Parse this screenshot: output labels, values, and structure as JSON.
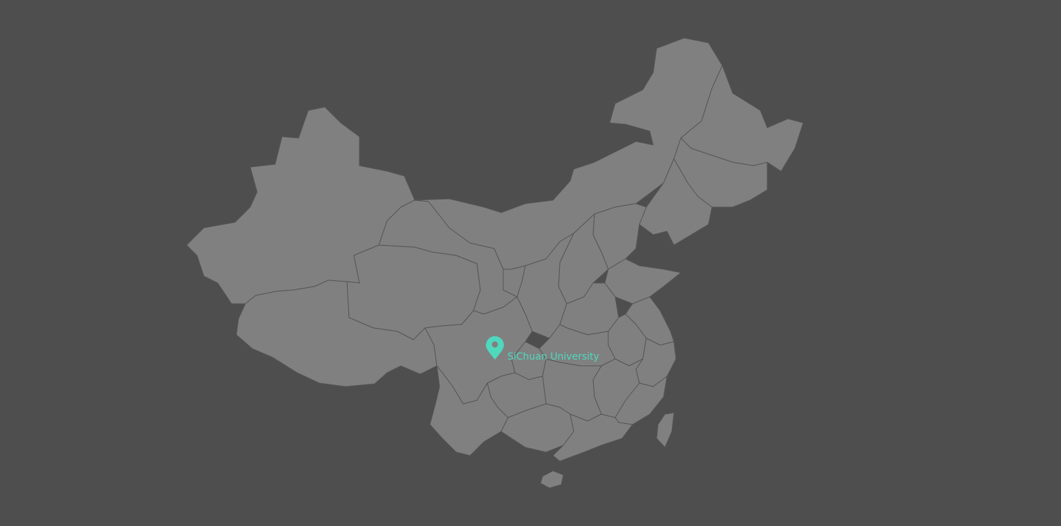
{
  "map": {
    "background_color": "#4e4e4e",
    "land_color": "#808080",
    "border_color": "#555555",
    "marker_color": "#4fd8be",
    "marker": {
      "icon": "map-pin-icon",
      "label": "SiChuan University"
    }
  }
}
